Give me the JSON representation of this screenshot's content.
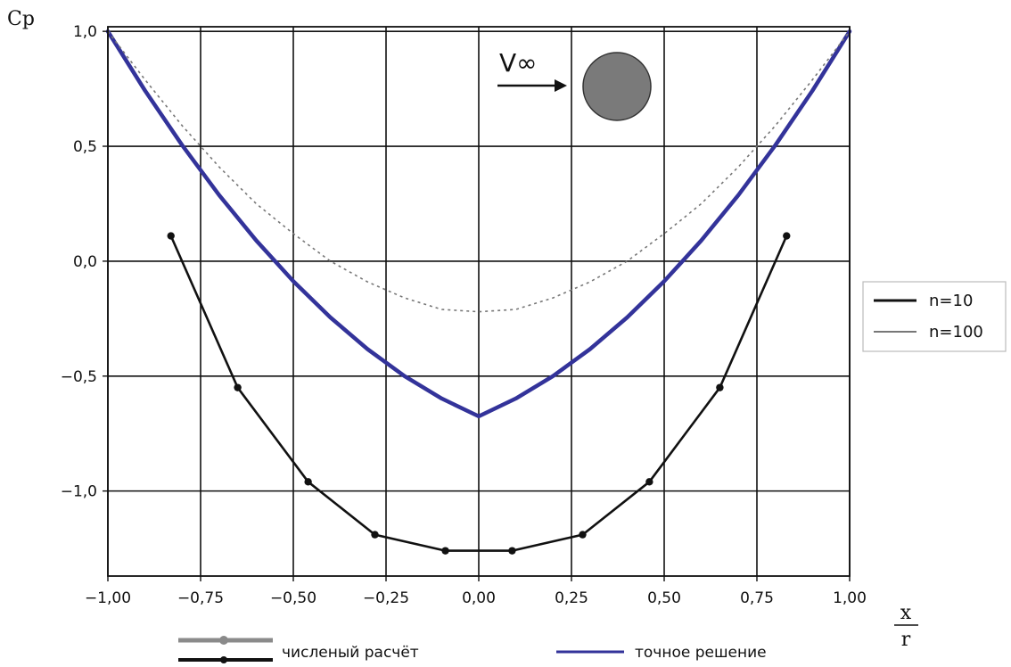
{
  "chart_data": {
    "type": "line",
    "ylabel": "Cp",
    "xlabel_numerator": "x",
    "xlabel_denominator": "r",
    "xlim": [
      -1.0,
      1.0
    ],
    "ylim": [
      -1.37,
      1.02
    ],
    "x_ticks": [
      {
        "value": -1.0,
        "label": "−1,00"
      },
      {
        "value": -0.75,
        "label": "−0,75"
      },
      {
        "value": -0.5,
        "label": "−0,50"
      },
      {
        "value": -0.25,
        "label": "−0,25"
      },
      {
        "value": 0.0,
        "label": "0,00"
      },
      {
        "value": 0.25,
        "label": "0,25"
      },
      {
        "value": 0.5,
        "label": "0,50"
      },
      {
        "value": 0.75,
        "label": "0,75"
      },
      {
        "value": 1.0,
        "label": "1,00"
      }
    ],
    "y_ticks": [
      {
        "value": 1.0,
        "label": "1,0"
      },
      {
        "value": 0.5,
        "label": "0,5"
      },
      {
        "value": 0.0,
        "label": "0,0"
      },
      {
        "value": -0.5,
        "label": "−0,5"
      },
      {
        "value": -1.0,
        "label": "−1,0"
      }
    ],
    "grid": true,
    "series": [
      {
        "name": "n=10",
        "kind": "numeric",
        "color": "#111111",
        "marker": "dot",
        "x": [
          -0.83,
          -0.65,
          -0.46,
          -0.28,
          -0.09,
          0.09,
          0.28,
          0.46,
          0.65,
          0.83
        ],
        "y": [
          0.11,
          -0.55,
          -0.96,
          -1.19,
          -1.26,
          -1.26,
          -1.19,
          -0.96,
          -0.55,
          0.11
        ]
      },
      {
        "name": "n=100",
        "kind": "numeric",
        "color": "#777777",
        "marker": "none",
        "x": [
          -1.0,
          -0.9,
          -0.8,
          -0.7,
          -0.6,
          -0.5,
          -0.4,
          -0.3,
          -0.2,
          -0.1,
          0.0,
          0.1,
          0.2,
          0.3,
          0.4,
          0.5,
          0.6,
          0.7,
          0.8,
          0.9,
          1.0
        ],
        "y": [
          1.0,
          0.79,
          0.59,
          0.41,
          0.25,
          0.12,
          0.0,
          -0.09,
          -0.16,
          -0.21,
          -0.22,
          -0.21,
          -0.16,
          -0.09,
          0.0,
          0.12,
          0.25,
          0.41,
          0.59,
          0.79,
          1.0
        ]
      },
      {
        "name": "точное решение",
        "kind": "exact",
        "color": "#33339a",
        "marker": "none",
        "x": [
          -1.0,
          -0.9,
          -0.8,
          -0.7,
          -0.6,
          -0.5,
          -0.4,
          -0.3,
          -0.2,
          -0.1,
          0.0,
          0.1,
          0.2,
          0.3,
          0.4,
          0.5,
          0.6,
          0.7,
          0.8,
          0.9,
          1.0
        ],
        "y": [
          1.0,
          0.7425,
          0.505,
          0.2875,
          0.09,
          -0.0875,
          -0.245,
          -0.3825,
          -0.5,
          -0.5975,
          -0.675,
          -0.5975,
          -0.5,
          -0.3825,
          -0.245,
          -0.0875,
          0.09,
          0.2875,
          0.505,
          0.7425,
          1.0
        ]
      }
    ],
    "legend": {
      "placement": "right",
      "items": [
        {
          "label": "n=10",
          "color": "#111111"
        },
        {
          "label": "n=100",
          "color": "#777777"
        }
      ]
    },
    "bottom_legend": {
      "placement": "bottom",
      "items": [
        {
          "label": "численый расчёт",
          "color": "#111111"
        },
        {
          "label": "точное решение",
          "color": "#33339a"
        }
      ]
    },
    "inset": {
      "text": "V∞",
      "circle_color": "#7a7a7a"
    }
  }
}
